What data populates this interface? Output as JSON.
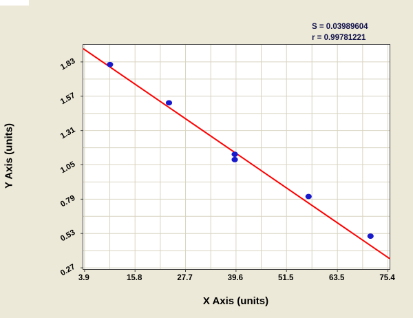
{
  "panel": {
    "background": "#ece9d8"
  },
  "stats": {
    "s_label": "S = 0.03989604",
    "r_label": "r = 0.99781221"
  },
  "chart_data": {
    "type": "scatter",
    "title": "",
    "xlabel": "X Axis (units)",
    "ylabel": "Y Axis (units)",
    "xlim": [
      3.6,
      75.8
    ],
    "ylim": [
      0.26,
      1.96
    ],
    "x_tick_values": [
      3.9,
      15.8,
      27.7,
      39.6,
      51.5,
      63.5,
      75.4
    ],
    "x_tick_labels": [
      "3.9",
      "15.8",
      "27.7",
      "39.6",
      "51.5",
      "63.5",
      "75.4"
    ],
    "y_tick_values": [
      0.27,
      0.53,
      0.79,
      1.05,
      1.31,
      1.57,
      1.83
    ],
    "y_tick_labels": [
      "0.27",
      "0.53",
      "0.79",
      "1.05",
      "1.31",
      "1.57",
      "1.83"
    ],
    "grid": true,
    "minor_grid": true,
    "legend": "none",
    "points": [
      {
        "x": 9.9,
        "y": 1.81
      },
      {
        "x": 23.8,
        "y": 1.52
      },
      {
        "x": 39.3,
        "y": 1.13
      },
      {
        "x": 39.3,
        "y": 1.09
      },
      {
        "x": 56.7,
        "y": 0.81
      },
      {
        "x": 71.3,
        "y": 0.51
      }
    ],
    "fit_line": {
      "x1": 3.6,
      "y1": 1.93,
      "x2": 75.8,
      "y2": 0.34
    },
    "colors": {
      "point": "#1a1acd",
      "line": "#ff0000",
      "grid": "#d8d4c2",
      "border": "#404040",
      "plot_bg": "#ffffff",
      "panel_bg": "#ece9d8",
      "stats_text": "#10104a"
    }
  }
}
